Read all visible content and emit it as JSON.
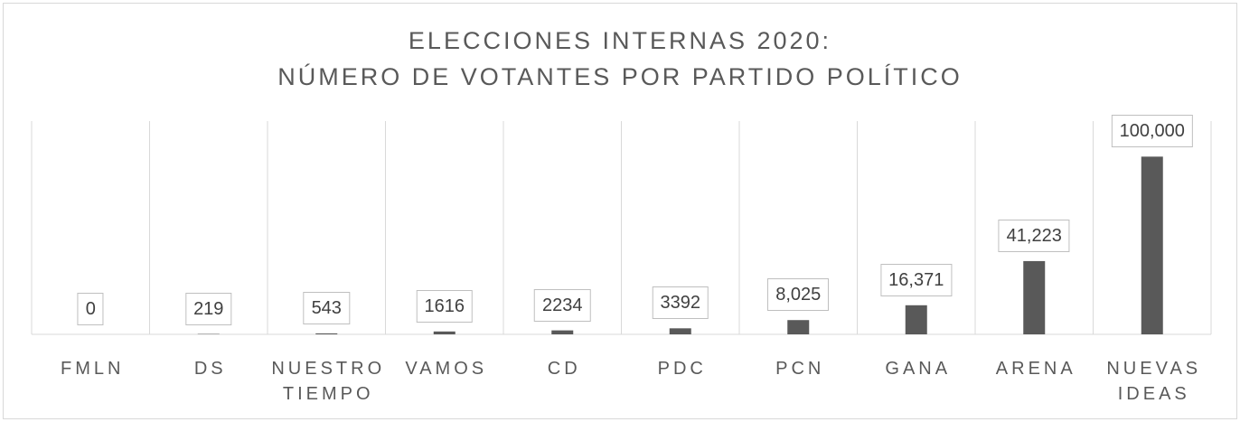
{
  "chart_data": {
    "type": "bar",
    "title": "ELECCIONES INTERNAS 2020:",
    "subtitle": "NÚMERO DE VOTANTES POR PARTIDO POLÍTICO",
    "categories": [
      "FMLN",
      "DS",
      "NUESTRO TIEMPO",
      "VAMOS",
      "CD",
      "PDC",
      "PCN",
      "GANA",
      "ARENA",
      "NUEVAS IDEAS"
    ],
    "values": [
      0,
      219,
      543,
      1616,
      2234,
      3392,
      8025,
      16371,
      41223,
      100000
    ],
    "value_labels": [
      "0",
      "219",
      "543",
      "1616",
      "2234",
      "3392",
      "8,025",
      "16,371",
      "41,223",
      "100,000"
    ],
    "color": "#595959",
    "ylim": [
      0,
      120000
    ],
    "grid": true
  }
}
